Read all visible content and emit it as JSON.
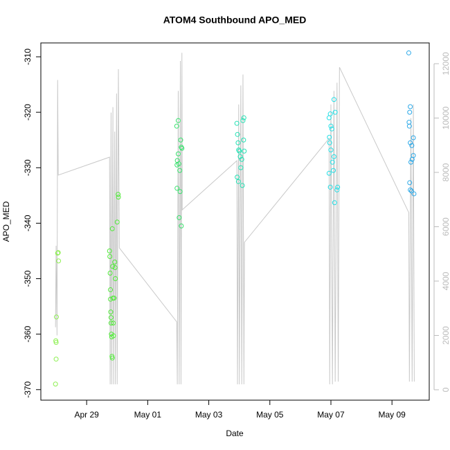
{
  "chart_data": {
    "type": "scatter",
    "title": "ATOM4 Southbound APO_MED",
    "x_label": "Date",
    "y_label": "APO_MED",
    "xlim": [
      -0.5,
      12.22
    ],
    "ylim": [
      -371.9,
      -307.5
    ],
    "y2lim": [
      -382,
      12764
    ],
    "xticks": [
      {
        "value": 1,
        "label": "Apr 29"
      },
      {
        "value": 3,
        "label": "May 01"
      },
      {
        "value": 5,
        "label": "May 03"
      },
      {
        "value": 7,
        "label": "May 05"
      },
      {
        "value": 9,
        "label": "May 07"
      },
      {
        "value": 11,
        "label": "May 09"
      }
    ],
    "yticks": [
      -310,
      -320,
      -330,
      -340,
      -350,
      -360,
      -370
    ],
    "y2ticks": [
      0,
      2000,
      4000,
      6000,
      8000,
      10000,
      12000
    ],
    "series": [
      {
        "color": "#c8c8c8",
        "axis": "y2",
        "x": [
          -0.02,
          0.0,
          0.03,
          0.05,
          0.07,
          1.75,
          1.77,
          1.8,
          1.82,
          1.86,
          1.88,
          1.92,
          1.94,
          1.98,
          2.0,
          2.04,
          2.07,
          3.95,
          3.97,
          4.0,
          4.03,
          4.07,
          4.09,
          4.12,
          4.13,
          5.92,
          5.94,
          5.98,
          6.0,
          6.05,
          6.08,
          6.12,
          6.15,
          6.17,
          8.94,
          8.96,
          9.0,
          9.05,
          9.1,
          9.14,
          9.2,
          9.24,
          9.28,
          11.55,
          11.57,
          11.62,
          11.66,
          11.7,
          11.73
        ],
        "values": [
          2300,
          5300,
          2000,
          11400,
          7900,
          8560,
          200,
          10200,
          200,
          10400,
          200,
          9500,
          200,
          10900,
          200,
          11800,
          5220,
          2500,
          200,
          11000,
          200,
          12100,
          200,
          12400,
          6620,
          8430,
          200,
          10500,
          200,
          11200,
          200,
          11600,
          200,
          5430,
          9250,
          200,
          10500,
          200,
          11000,
          300,
          11300,
          300,
          11870,
          6520,
          300,
          10000,
          300,
          10500,
          300
        ]
      },
      {
        "color": "#8cf050",
        "x": [
          -0.02,
          0.0,
          -0.01,
          0.0,
          0.01,
          0.05,
          0.07,
          0.08
        ],
        "values": [
          -369,
          -364.5,
          -361.2,
          -361.5,
          -356.9,
          -345.4,
          -345.3,
          -346.8
        ]
      },
      {
        "color": "#50ea38",
        "x": [
          1.75,
          1.76,
          1.77,
          1.78,
          1.78,
          1.79,
          1.8,
          1.8,
          1.81,
          1.82,
          1.83,
          1.84,
          1.84,
          1.85,
          1.86,
          1.87,
          1.88,
          1.9,
          1.92,
          1.93,
          1.94,
          2.0,
          2.03,
          2.04
        ],
        "values": [
          -345,
          -346,
          -349,
          -352,
          -353.7,
          -356,
          -357,
          -358,
          -360,
          -360.5,
          -364,
          -364.3,
          -341,
          -347.8,
          -353.5,
          -358,
          -360.3,
          -353.5,
          -347,
          -348,
          -350,
          -339.8,
          -334.8,
          -335.3
        ]
      },
      {
        "color": "#36e26c",
        "x": [
          3.95,
          4.0,
          4.08,
          4.1,
          4.0,
          3.97,
          3.96,
          4.02,
          4.05,
          3.96,
          4.06,
          4.03,
          4.1,
          4.12
        ],
        "values": [
          -322.5,
          -321.5,
          -325,
          -326.3,
          -327.5,
          -328.7,
          -329.5,
          -329.3,
          -330.5,
          -333.7,
          -334.3,
          -339,
          -340.5,
          -326.5
        ]
      },
      {
        "color": "#22e2b4",
        "x": [
          5.92,
          5.94,
          5.96,
          5.98,
          6.0,
          6.03,
          6.05,
          5.93,
          5.97,
          6.1,
          6.12,
          6.14,
          6.16,
          6.08,
          6.15
        ],
        "values": [
          -322,
          -324,
          -325.5,
          -326.8,
          -327,
          -328,
          -330,
          -331.7,
          -332.5,
          -333.2,
          -321.5,
          -325,
          -327,
          -328.5,
          -321
        ]
      },
      {
        "color": "#22dfe6",
        "x": [
          8.94,
          8.98,
          9.0,
          9.03,
          8.95,
          8.96,
          9.0,
          9.1,
          9.05,
          9.08,
          8.94,
          8.98,
          9.12,
          9.1,
          9.14,
          9.2,
          9.22
        ],
        "values": [
          -321,
          -320.3,
          -322.5,
          -323,
          -324.5,
          -325.5,
          -326.8,
          -328,
          -329,
          -330.5,
          -331,
          -333.5,
          -336.3,
          -317.7,
          -320,
          -334,
          -333.5
        ]
      },
      {
        "color": "#2aa8e8",
        "x": [
          11.55,
          11.6,
          11.58,
          11.56,
          11.57,
          11.6,
          11.65,
          11.7,
          11.66,
          11.62,
          11.58,
          11.6,
          11.64,
          11.72,
          11.7
        ],
        "values": [
          -309.3,
          -319,
          -320,
          -321.8,
          -322.5,
          -325.5,
          -326,
          -327.8,
          -328.5,
          -329,
          -332.7,
          -334,
          -334.2,
          -334.7,
          -324.6
        ]
      }
    ]
  }
}
